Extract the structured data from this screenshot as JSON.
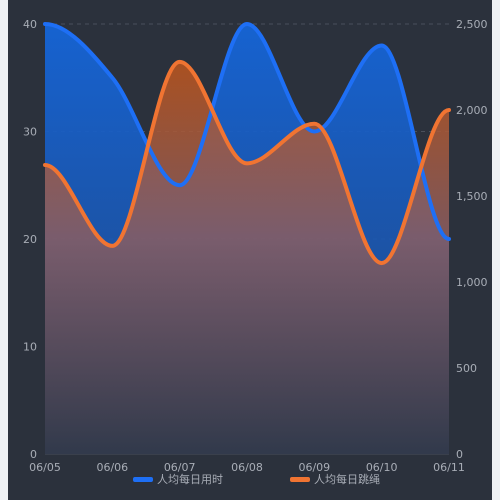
{
  "chart_data": {
    "type": "area",
    "categories": [
      "06/05",
      "06/06",
      "06/07",
      "06/08",
      "06/09",
      "06/10",
      "06/11"
    ],
    "left_axis": {
      "ylim": [
        0,
        40
      ],
      "ticks": [
        "0",
        "10",
        "20",
        "30",
        "40"
      ]
    },
    "right_axis": {
      "ylim": [
        0,
        2500
      ],
      "ticks": [
        "0",
        "500",
        "1,000",
        "1,500",
        "2,000",
        "2,500"
      ]
    },
    "series": [
      {
        "name": "人均每日用时",
        "axis": "left",
        "values": [
          40,
          35,
          25,
          40,
          30,
          38,
          20
        ],
        "color": "#1e6ff5"
      },
      {
        "name": "人均每日跳绳",
        "axis": "right",
        "values": [
          1680,
          1210,
          2280,
          1690,
          1920,
          1110,
          2000
        ],
        "color": "#f07432"
      }
    ],
    "grid": true,
    "legend_position": "bottom-center"
  }
}
